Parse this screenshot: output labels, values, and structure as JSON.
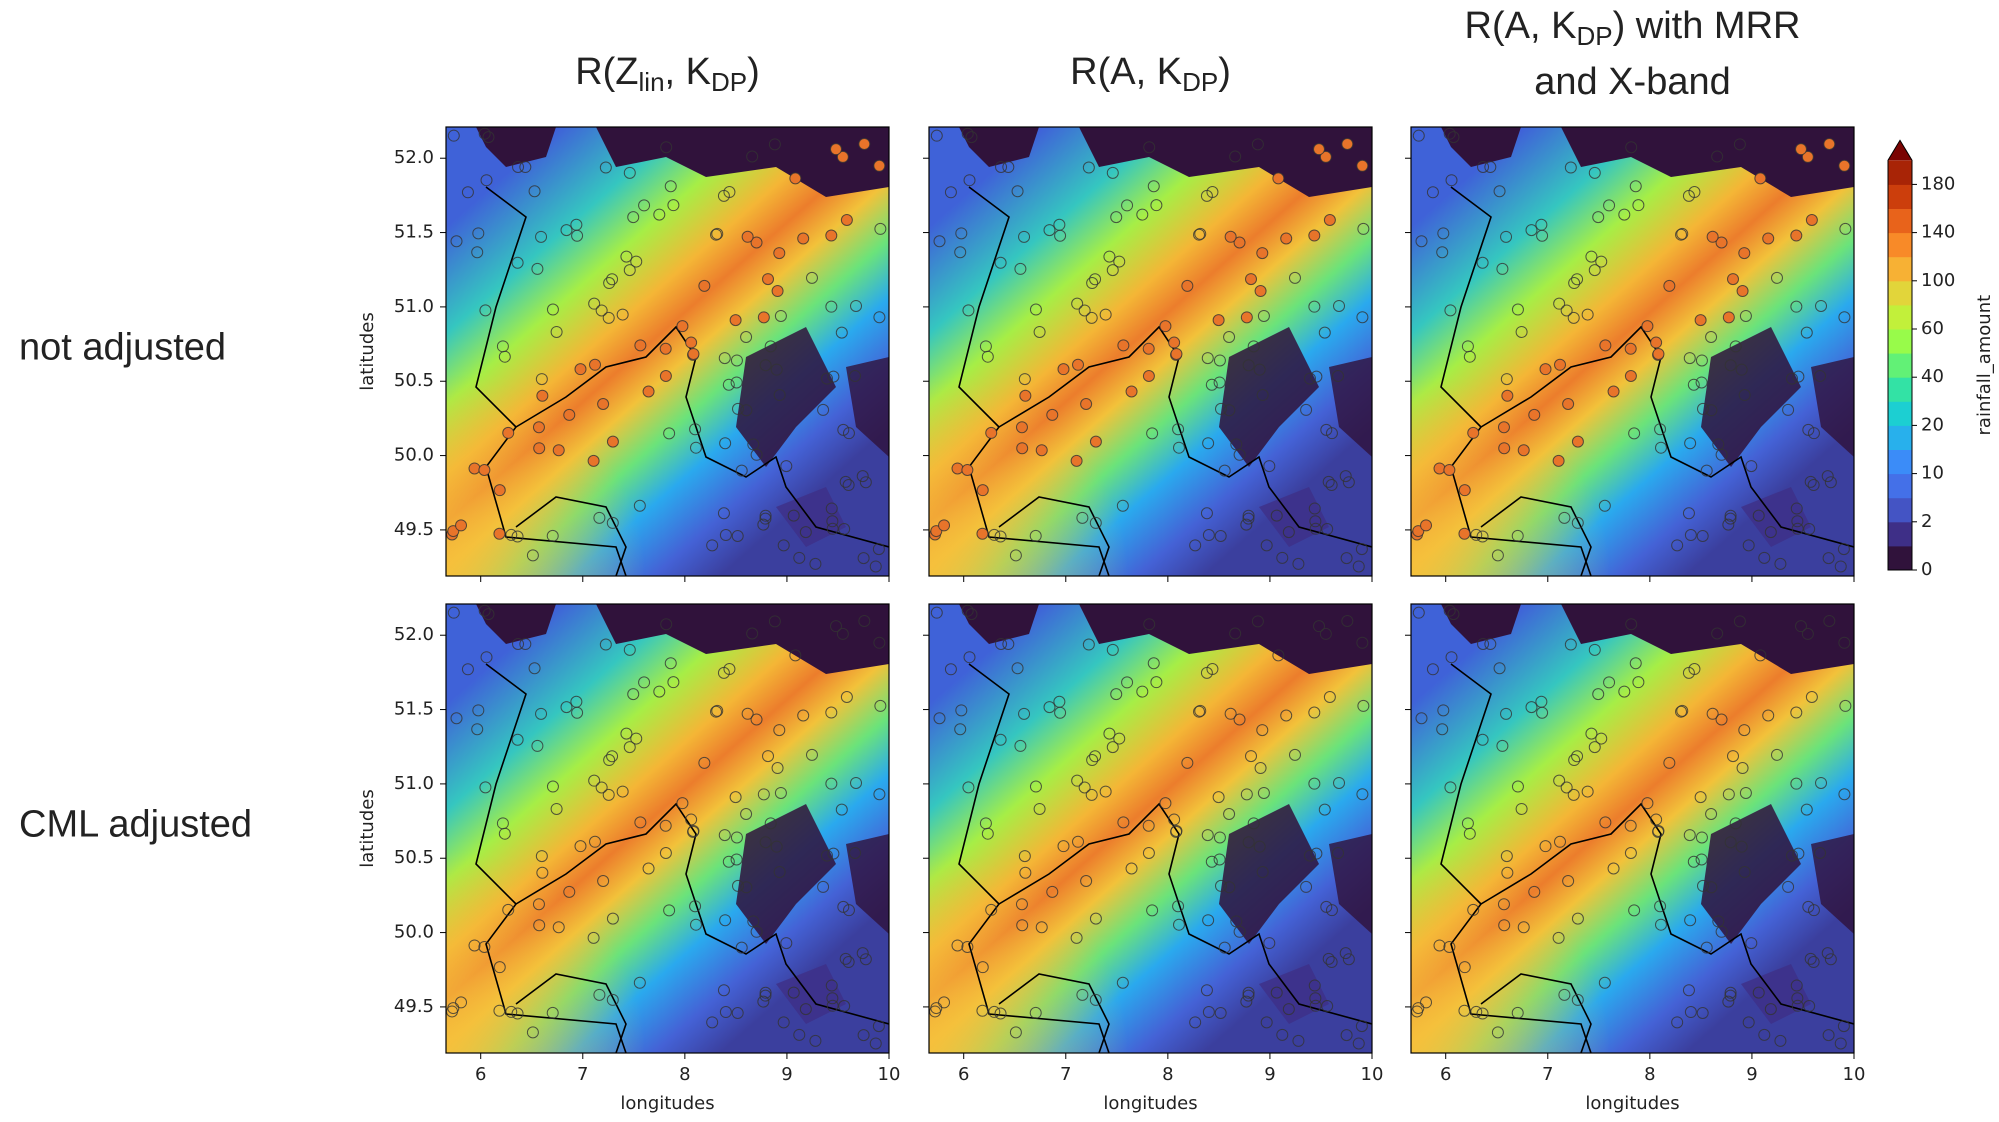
{
  "columns": [
    {
      "title": [
        [
          {
            "text": "R(Z"
          },
          {
            "text": "lin",
            "sub": true
          },
          {
            "text": ", K"
          },
          {
            "text": "DP",
            "sub": true
          },
          {
            "text": ")"
          }
        ]
      ]
    },
    {
      "title": [
        [
          {
            "text": "R(A, K"
          },
          {
            "text": "DP",
            "sub": true
          },
          {
            "text": ")"
          }
        ]
      ]
    },
    {
      "title": [
        [
          {
            "text": "R(A, K"
          },
          {
            "text": "DP",
            "sub": true
          },
          {
            "text": ") with MRR"
          }
        ],
        [
          {
            "text": "and X-band"
          }
        ]
      ]
    }
  ],
  "rows": [
    "not adjusted",
    "CML adjusted"
  ],
  "axes": {
    "xlabel": "longitudes",
    "ylabel": "latitudes",
    "xlim": [
      5.66,
      10.0
    ],
    "ylim": [
      49.19,
      52.21
    ],
    "xticks": [
      6,
      7,
      8,
      9,
      10
    ],
    "yticks": [
      49.5,
      {
        "value": 50,
        "label": "50.0"
      },
      50.5,
      {
        "value": 51,
        "label": "51.0"
      },
      51.5,
      {
        "value": 52,
        "label": "52.0"
      }
    ]
  },
  "colorbar": {
    "label": "rainfall_amount",
    "ticks": [
      0,
      2,
      10,
      20,
      40,
      60,
      100,
      140,
      180
    ],
    "extend": "max",
    "colors": [
      "#30123b",
      "#3e2f87",
      "#4454c4",
      "#4470e8",
      "#3b8cf8",
      "#28b0ec",
      "#1ccfd2",
      "#33e2a5",
      "#62f176",
      "#98fb4a",
      "#c2f03a",
      "#e2d53a",
      "#f7b134",
      "#f88a28",
      "#e8631b",
      "#cc3e0c",
      "#a82406"
    ],
    "extend_color": "#7a0403"
  }
}
